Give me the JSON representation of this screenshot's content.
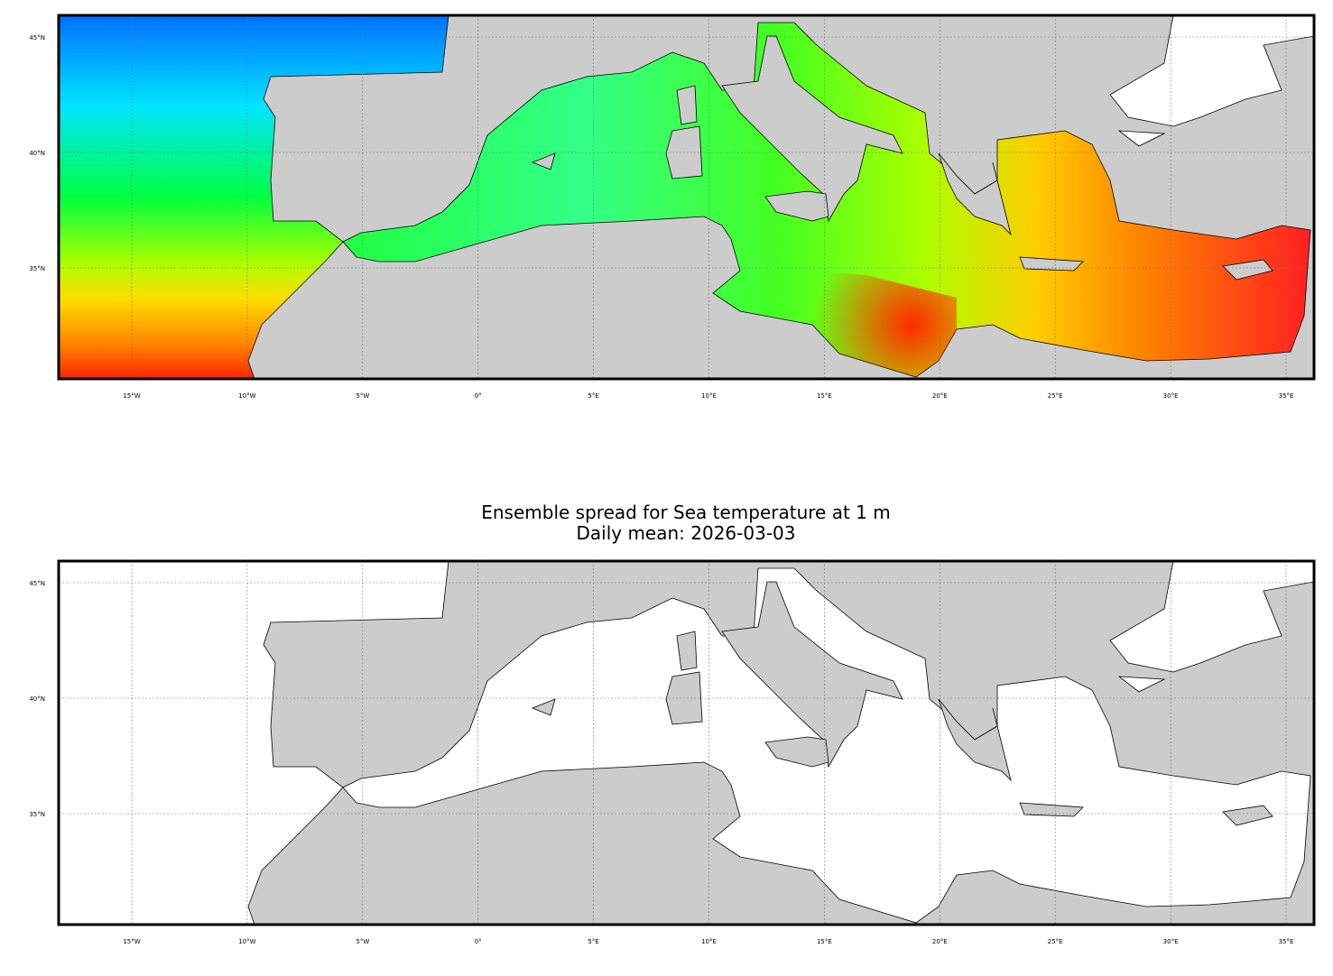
{
  "title": {
    "line1": "Ensemble spread for Sea temperature at 1 m",
    "line2": "Daily mean: 2026-03-03"
  },
  "maps": [
    {
      "lon_ticks": [
        {
          "value": -15,
          "label": "15°W"
        },
        {
          "value": -10,
          "label": "10°W"
        },
        {
          "value": -5,
          "label": "5°W"
        },
        {
          "value": 0,
          "label": "0°"
        },
        {
          "value": 5,
          "label": "5°E"
        },
        {
          "value": 10,
          "label": "10°E"
        },
        {
          "value": 15,
          "label": "15°E"
        },
        {
          "value": 20,
          "label": "20°E"
        },
        {
          "value": 25,
          "label": "25°E"
        },
        {
          "value": 30,
          "label": "30°E"
        },
        {
          "value": 35,
          "label": "35°E"
        }
      ],
      "lat_ticks": [
        {
          "value": 35,
          "label": "35°N"
        },
        {
          "value": 40,
          "label": "40°N"
        },
        {
          "value": 45,
          "label": "45°N"
        }
      ]
    },
    {
      "lon_ticks": [
        {
          "value": -15,
          "label": "15°W"
        },
        {
          "value": -10,
          "label": "10°W"
        },
        {
          "value": -5,
          "label": "5°W"
        },
        {
          "value": 0,
          "label": "0°"
        },
        {
          "value": 5,
          "label": "5°E"
        },
        {
          "value": 10,
          "label": "10°E"
        },
        {
          "value": 15,
          "label": "15°E"
        },
        {
          "value": 20,
          "label": "20°E"
        },
        {
          "value": 25,
          "label": "25°E"
        },
        {
          "value": 30,
          "label": "30°E"
        },
        {
          "value": 35,
          "label": "35°E"
        }
      ],
      "lat_ticks": [
        {
          "value": 35,
          "label": "35°N"
        },
        {
          "value": 40,
          "label": "40°N"
        },
        {
          "value": 45,
          "label": "45°N"
        }
      ]
    }
  ]
}
